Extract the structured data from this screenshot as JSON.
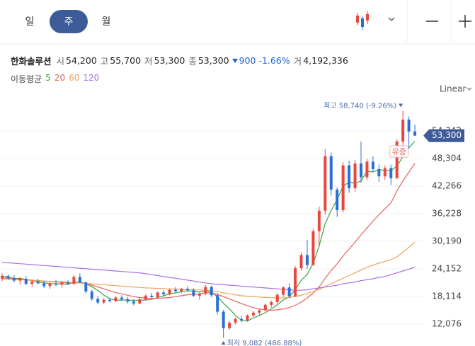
{
  "toolbar": {
    "tabs": [
      "일",
      "주",
      "월"
    ],
    "scale_mode": "Linear"
  },
  "info": {
    "name": "한화솔루션",
    "fields": [
      {
        "label": "시",
        "value": "54,200"
      },
      {
        "label": "고",
        "value": "55,700"
      },
      {
        "label": "저",
        "value": "53,300"
      },
      {
        "label": "종",
        "value": "53,300"
      }
    ],
    "change": "900",
    "change_pct": "-1.66%",
    "volume_label": "거",
    "volume": "4,192,336"
  },
  "chart_data": {
    "type": "candlestick",
    "ma_label": "이동평균",
    "ylim": [
      7300,
      61300
    ],
    "yticks": [
      {
        "value": 12076,
        "label": "12,076"
      },
      {
        "value": 18114,
        "label": "18,114"
      },
      {
        "value": 24152,
        "label": "24,152"
      },
      {
        "value": 30190,
        "label": "30,190"
      },
      {
        "value": 36228,
        "label": "36,228"
      },
      {
        "value": 42266,
        "label": "42,266"
      },
      {
        "value": 48304,
        "label": "48,304"
      },
      {
        "value": 54342,
        "label": "54,342"
      }
    ],
    "grid": true,
    "up_color": "#e8473e",
    "down_color": "#2a6fd6",
    "open": [
      22000,
      22600,
      22100,
      21600,
      22000,
      20900,
      21400,
      21000,
      20400,
      21000,
      20700,
      21200,
      20900,
      22400,
      21200,
      19200,
      17600,
      16800,
      17400,
      17100,
      17900,
      17500,
      17000,
      16600,
      17500,
      18300,
      18000,
      19000,
      18600,
      19600,
      19300,
      19800,
      19500,
      18300,
      18700,
      20200,
      18400,
      14800,
      11200,
      12400,
      13200,
      12900,
      14000,
      14600,
      15100,
      16300,
      16900,
      18500,
      20100,
      18200,
      24300,
      27200,
      25000,
      32400,
      36900,
      48800,
      41500,
      37000,
      46800,
      41800,
      47200,
      44200,
      47600,
      46000,
      44400,
      46200,
      44000,
      52000,
      56800,
      54200
    ],
    "high": [
      23200,
      23000,
      22800,
      22400,
      22600,
      21800,
      22000,
      21600,
      21200,
      21800,
      21500,
      21700,
      22800,
      23200,
      21500,
      19600,
      18200,
      17800,
      17900,
      18200,
      18400,
      18000,
      17600,
      17800,
      18600,
      18900,
      19200,
      19500,
      19800,
      20200,
      20000,
      20400,
      19900,
      19000,
      20600,
      20500,
      18800,
      15200,
      12800,
      13600,
      13900,
      14200,
      15000,
      15400,
      16600,
      17200,
      18800,
      20400,
      21000,
      24800,
      27800,
      30500,
      33000,
      37800,
      50400,
      49600,
      42000,
      47500,
      47800,
      48000,
      52000,
      48200,
      48800,
      47000,
      46800,
      47000,
      52500,
      58740,
      57500,
      55700
    ],
    "low": [
      21500,
      21800,
      21200,
      20800,
      20600,
      20200,
      20800,
      20000,
      19800,
      20400,
      20000,
      20600,
      20600,
      21000,
      18800,
      17200,
      16400,
      16500,
      16800,
      16900,
      17200,
      16600,
      16200,
      16400,
      17200,
      17700,
      17800,
      18200,
      18400,
      19000,
      18800,
      19200,
      18000,
      17400,
      18400,
      18000,
      14200,
      9082,
      10800,
      12000,
      12500,
      12600,
      13600,
      14000,
      14800,
      15700,
      16500,
      18000,
      17800,
      18000,
      23800,
      24200,
      24800,
      29000,
      36000,
      40200,
      35500,
      36500,
      40800,
      41000,
      43000,
      43600,
      45400,
      43200,
      43600,
      42500,
      43800,
      49000,
      50500,
      53300
    ],
    "close": [
      22600,
      22100,
      21600,
      22000,
      20900,
      21400,
      21000,
      20400,
      21000,
      20700,
      21200,
      20900,
      22400,
      21200,
      19200,
      17600,
      16800,
      17400,
      17100,
      17900,
      17500,
      17000,
      16600,
      17500,
      18300,
      18000,
      19000,
      18600,
      19600,
      19300,
      19800,
      19500,
      18300,
      18700,
      20200,
      18400,
      14800,
      11200,
      12400,
      13200,
      12900,
      14000,
      14600,
      15100,
      16300,
      16900,
      18500,
      20100,
      18200,
      24300,
      27200,
      25000,
      32400,
      36900,
      48800,
      41500,
      37000,
      46800,
      41800,
      47200,
      44200,
      47600,
      46000,
      44400,
      46200,
      44000,
      52000,
      56800,
      54200,
      53300
    ],
    "series": [
      {
        "name": "5",
        "color": "#35a63f",
        "values": [
          22600,
          22350,
          22100,
          22075,
          21840,
          21600,
          21380,
          21140,
          20940,
          20900,
          20860,
          20840,
          21240,
          21280,
          20980,
          20260,
          19440,
          18440,
          17620,
          17360,
          17340,
          17380,
          17220,
          17300,
          17380,
          17480,
          17880,
          18280,
          18700,
          18900,
          19260,
          19360,
          19300,
          19120,
          19300,
          19020,
          18080,
          16660,
          15400,
          14000,
          12900,
          12740,
          13420,
          13960,
          14580,
          15380,
          16280,
          17380,
          18000,
          19600,
          21660,
          22960,
          25420,
          29160,
          34060,
          36920,
          39320,
          42200,
          43180,
          42860,
          43400,
          45520,
          45360,
          45880,
          45680,
          45640,
          46640,
          48680,
          50640,
          52060
        ]
      },
      {
        "name": "20",
        "color": "#e8625e",
        "values": [
          22200,
          22100,
          22000,
          21900,
          21800,
          21700,
          21600,
          21500,
          21400,
          21300,
          21200,
          21100,
          21100,
          21100,
          20900,
          20600,
          20200,
          19800,
          19400,
          19000,
          18700,
          18400,
          18100,
          17900,
          17800,
          17700,
          17700,
          17800,
          17900,
          18100,
          18300,
          18500,
          18600,
          18700,
          18900,
          18900,
          18600,
          18100,
          17600,
          17100,
          16600,
          16100,
          15700,
          15400,
          15200,
          15100,
          15200,
          15400,
          15700,
          16200,
          16900,
          17800,
          18900,
          20200,
          22100,
          23800,
          25300,
          27000,
          28500,
          30000,
          31600,
          33100,
          34600,
          36000,
          37300,
          38600,
          41200,
          43400,
          45300,
          47200
        ]
      },
      {
        "name": "60",
        "color": "#f2a25c",
        "values": [
          22000,
          21900,
          21850,
          21800,
          21700,
          21650,
          21600,
          21500,
          21450,
          21400,
          21300,
          21250,
          21200,
          21100,
          21000,
          20900,
          20800,
          20700,
          20600,
          20500,
          20400,
          20300,
          20200,
          20100,
          20000,
          19950,
          19900,
          19850,
          19800,
          19750,
          19700,
          19650,
          19600,
          19550,
          19500,
          19400,
          19200,
          18900,
          18700,
          18500,
          18300,
          18200,
          18100,
          18000,
          17900,
          17850,
          17800,
          17800,
          17900,
          18100,
          18400,
          18800,
          19200,
          19700,
          20300,
          20900,
          21500,
          22100,
          22700,
          23300,
          23900,
          24500,
          25000,
          25400,
          25800,
          26200,
          26800,
          27800,
          28900,
          30000
        ]
      },
      {
        "name": "120",
        "color": "#a96de8",
        "values": [
          25600,
          25500,
          25400,
          25300,
          25200,
          25100,
          25000,
          24900,
          24800,
          24700,
          24600,
          24500,
          24400,
          24300,
          24200,
          24100,
          24000,
          23900,
          23800,
          23700,
          23600,
          23500,
          23400,
          23300,
          23100,
          22900,
          22700,
          22500,
          22300,
          22100,
          21900,
          21700,
          21500,
          21300,
          21100,
          20900,
          20800,
          20700,
          20600,
          20500,
          20400,
          20300,
          20200,
          20100,
          20000,
          19900,
          19800,
          19700,
          19600,
          19500,
          19500,
          19600,
          19800,
          20000,
          20200,
          20400,
          20600,
          20900,
          21100,
          21300,
          21600,
          21800,
          22000,
          22300,
          22500,
          22900,
          23300,
          23700,
          24100,
          24500
        ]
      }
    ],
    "last_price": {
      "value": 53300,
      "label": "53,300"
    },
    "annotations": [
      {
        "text": "최고 58,740 (-9.26%)",
        "value": 58740,
        "kind": "high",
        "index": 67
      },
      {
        "text": "최저 9,082 (486.88%)",
        "value": 9082,
        "kind": "low",
        "index": 37
      },
      {
        "text": "유증",
        "value": 52000,
        "kind": "event",
        "index": 66
      }
    ]
  }
}
